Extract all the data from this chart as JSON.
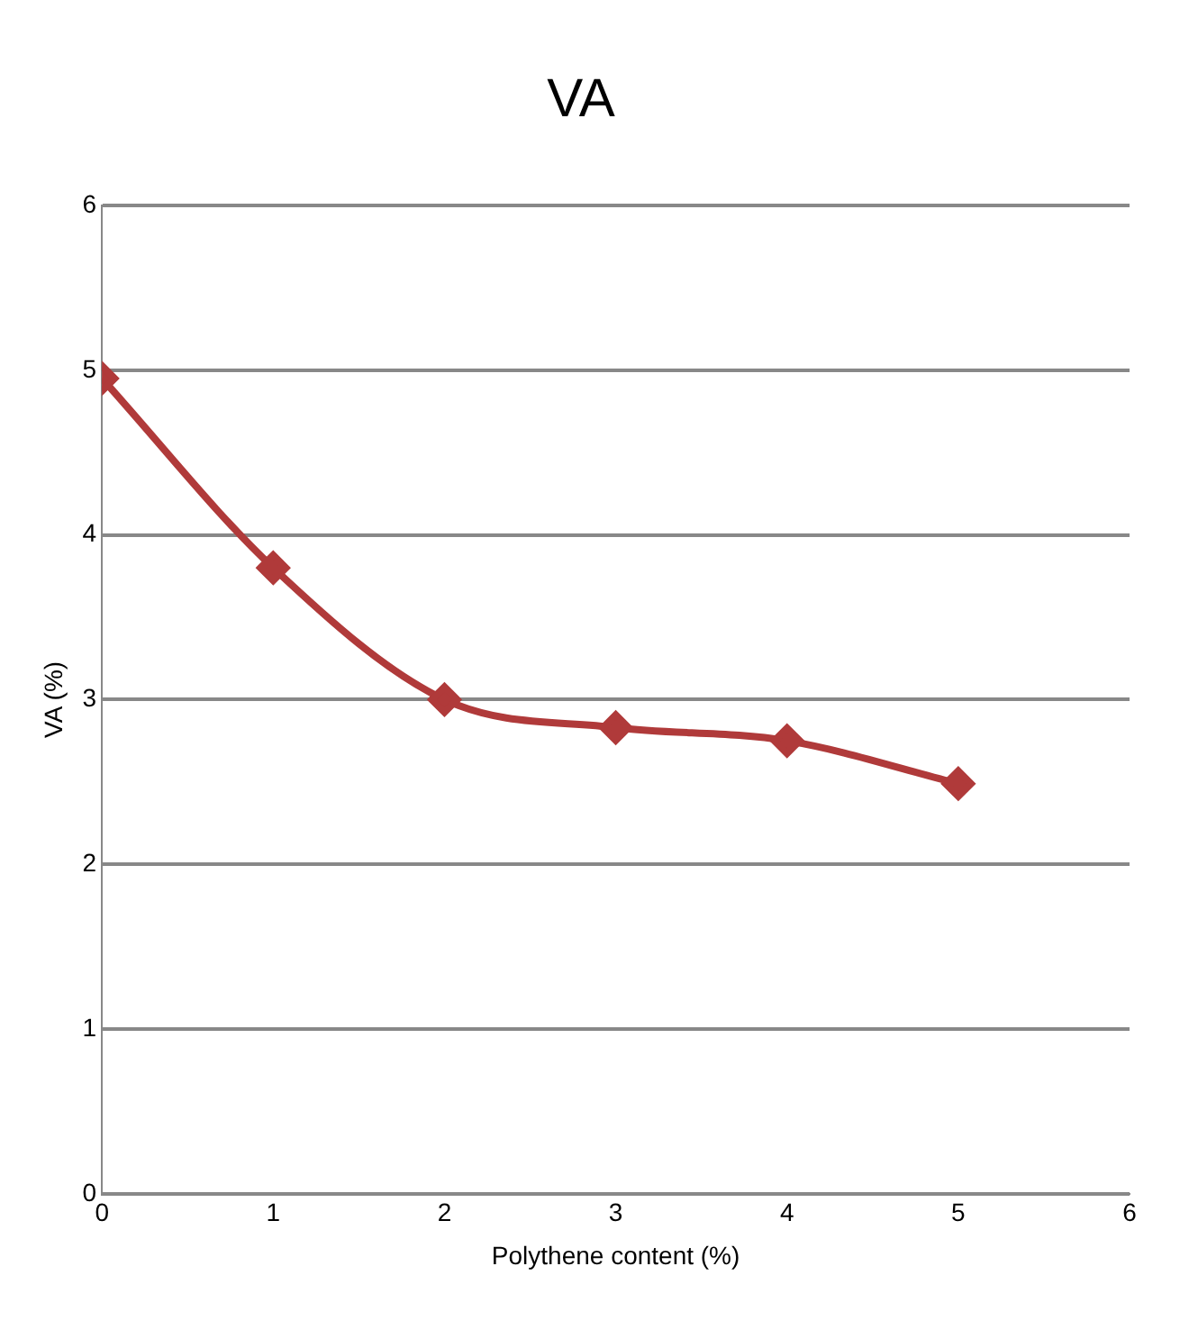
{
  "chart_data": {
    "type": "line",
    "title": "VA",
    "xlabel": "Polythene content (%)",
    "ylabel": "VA (%)",
    "x": [
      0,
      1,
      2,
      3,
      4,
      5
    ],
    "series": [
      {
        "color": "#b03a3a",
        "values": [
          4.95,
          3.8,
          3.0,
          2.83,
          2.75,
          2.49
        ]
      }
    ],
    "xlim": [
      0,
      6
    ],
    "xticks": [
      0,
      1,
      2,
      3,
      4,
      5,
      6
    ],
    "ylim": [
      0,
      6
    ],
    "yticks": [
      0,
      1,
      2,
      3,
      4,
      5,
      6
    ],
    "grid": "y",
    "legend": false,
    "marker": "diamond",
    "line_style": "solid"
  }
}
